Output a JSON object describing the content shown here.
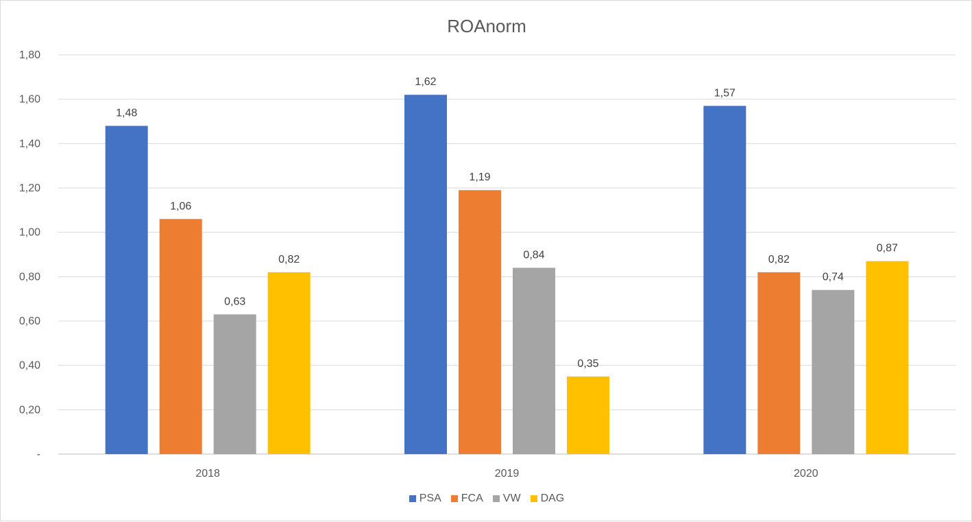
{
  "chart_data": {
    "type": "bar",
    "title": "ROAnorm",
    "categories": [
      "2018",
      "2019",
      "2020"
    ],
    "series": [
      {
        "name": "PSA",
        "values": [
          1.48,
          1.62,
          1.57
        ],
        "labels": [
          "1,48",
          "1,62",
          "1,57"
        ],
        "color": "#4472c4"
      },
      {
        "name": "FCA",
        "values": [
          1.06,
          1.19,
          0.82
        ],
        "labels": [
          "1,06",
          "1,19",
          "0,82"
        ],
        "color": "#ed7d31"
      },
      {
        "name": "VW",
        "values": [
          0.63,
          0.84,
          0.74
        ],
        "labels": [
          "0,63",
          "0,84",
          "0,74"
        ],
        "color": "#a5a5a5"
      },
      {
        "name": "DAG",
        "values": [
          0.82,
          0.35,
          0.87
        ],
        "labels": [
          "0,82",
          "0,35",
          "0,87"
        ],
        "color": "#ffc000"
      }
    ],
    "ylim": [
      0,
      1.8
    ],
    "yticks": [
      0,
      0.2,
      0.4,
      0.6,
      0.8,
      1.0,
      1.2,
      1.4,
      1.6,
      1.8
    ],
    "ytick_labels": [
      "-",
      "0,20",
      "0,40",
      "0,60",
      "0,80",
      "1,00",
      "1,20",
      "1,40",
      "1,60",
      "1,80"
    ],
    "xlabel": "",
    "ylabel": "",
    "grid": true,
    "legend_position": "bottom"
  }
}
